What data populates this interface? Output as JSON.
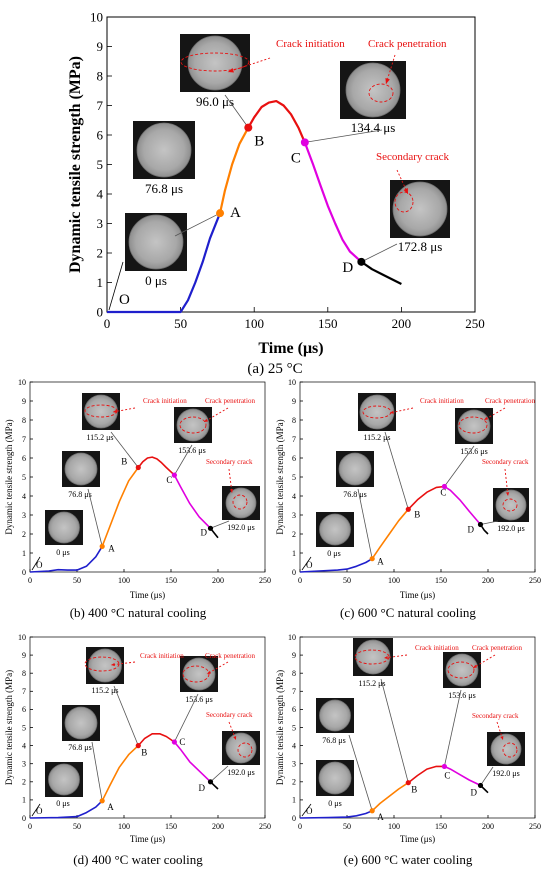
{
  "chart_data": [
    {
      "type": "line",
      "panel": "a",
      "caption": "(a) 25 °C",
      "xlabel": "Time (μs)",
      "ylabel": "Dynamic tensile strength (MPa)",
      "xlim": [
        0,
        250
      ],
      "ylim": [
        0,
        10
      ],
      "xticks": [
        0,
        50,
        100,
        150,
        200,
        250
      ],
      "yticks": [
        0,
        1,
        2,
        3,
        4,
        5,
        6,
        7,
        8,
        9,
        10
      ],
      "grid": false,
      "series": [
        {
          "color": "#1f1fcc",
          "x": [
            0,
            50,
            55,
            60,
            65,
            70,
            76.8
          ],
          "y": [
            0,
            0,
            0.4,
            1.0,
            1.7,
            2.5,
            3.35
          ]
        },
        {
          "color": "#ff8000",
          "x": [
            76.8,
            80,
            85,
            90,
            96.0
          ],
          "y": [
            3.35,
            4.1,
            5.0,
            5.7,
            6.25
          ]
        },
        {
          "color": "#e81010",
          "x": [
            96.0,
            100,
            105,
            110,
            115,
            120,
            125,
            130,
            134.4
          ],
          "y": [
            6.25,
            6.6,
            6.95,
            7.1,
            7.15,
            7.0,
            6.7,
            6.25,
            5.75
          ]
        },
        {
          "color": "#e000e0",
          "x": [
            134.4,
            140,
            145,
            150,
            155,
            160,
            165,
            172.8
          ],
          "y": [
            5.75,
            5.0,
            4.3,
            3.6,
            3.0,
            2.45,
            2.05,
            1.7
          ]
        },
        {
          "color": "#000000",
          "x": [
            172.8,
            180,
            190,
            200
          ],
          "y": [
            1.7,
            1.45,
            1.2,
            0.95
          ]
        }
      ],
      "points": [
        {
          "label": "O",
          "x": 0,
          "y": 0,
          "color": "#1f1fcc"
        },
        {
          "label": "A",
          "x": 76.8,
          "y": 3.35,
          "color": "#ff8000"
        },
        {
          "label": "B",
          "x": 96.0,
          "y": 6.25,
          "color": "#e81010"
        },
        {
          "label": "C",
          "x": 134.4,
          "y": 5.75,
          "color": "#e000e0"
        },
        {
          "label": "D",
          "x": 172.8,
          "y": 1.7,
          "color": "#000000"
        }
      ],
      "snapshots": [
        {
          "time": "0 μs",
          "target": "O"
        },
        {
          "time": "76.8 μs",
          "target": "A"
        },
        {
          "time": "96.0 μs",
          "target": "B"
        },
        {
          "time": "134.4 μs",
          "target": "C"
        },
        {
          "time": "172.8 μs",
          "target": "D"
        }
      ],
      "annotations": [
        "Crack initiation",
        "Crack penetration",
        "Secondary crack"
      ]
    },
    {
      "type": "line",
      "panel": "b",
      "caption": "(b) 400 °C natural cooling",
      "xlabel": "Time (μs)",
      "ylabel": "Dynamic tensile strength (MPa)",
      "xlim": [
        0,
        250
      ],
      "ylim": [
        0,
        10
      ],
      "xticks": [
        0,
        50,
        100,
        150,
        200,
        250
      ],
      "yticks": [
        0,
        1,
        2,
        3,
        4,
        5,
        6,
        7,
        8,
        9,
        10
      ],
      "grid": false,
      "series": [
        {
          "color": "#1f1fcc",
          "x": [
            0,
            20,
            30,
            40,
            50,
            60,
            70,
            76.8
          ],
          "y": [
            0,
            0.05,
            0.12,
            0.1,
            0.1,
            0.3,
            0.8,
            1.35
          ]
        },
        {
          "color": "#ff8000",
          "x": [
            76.8,
            85,
            95,
            105,
            115.2
          ],
          "y": [
            1.35,
            2.4,
            3.7,
            4.8,
            5.5
          ]
        },
        {
          "color": "#e81010",
          "x": [
            115.2,
            120,
            125,
            130,
            135,
            140,
            145,
            153.6
          ],
          "y": [
            5.5,
            5.8,
            6.0,
            6.05,
            5.95,
            5.75,
            5.5,
            5.1
          ]
        },
        {
          "color": "#e000e0",
          "x": [
            153.6,
            160,
            170,
            180,
            192.0
          ],
          "y": [
            5.1,
            4.5,
            3.6,
            2.9,
            2.3
          ]
        },
        {
          "color": "#000000",
          "x": [
            192.0,
            196,
            200
          ],
          "y": [
            2.3,
            2.05,
            1.8
          ]
        }
      ],
      "points": [
        {
          "label": "O",
          "x": 0,
          "y": 0,
          "color": "#1f1fcc"
        },
        {
          "label": "A",
          "x": 76.8,
          "y": 1.35,
          "color": "#ff8000"
        },
        {
          "label": "B",
          "x": 115.2,
          "y": 5.5,
          "color": "#e81010"
        },
        {
          "label": "C",
          "x": 153.6,
          "y": 5.1,
          "color": "#e000e0"
        },
        {
          "label": "D",
          "x": 192.0,
          "y": 2.3,
          "color": "#000000"
        }
      ],
      "snapshots": [
        {
          "time": "0 μs",
          "target": "O"
        },
        {
          "time": "76.8 μs",
          "target": "A"
        },
        {
          "time": "115.2 μs",
          "target": "B"
        },
        {
          "time": "153.6 μs",
          "target": "C"
        },
        {
          "time": "192.0 μs",
          "target": "D"
        }
      ],
      "annotations": [
        "Crack initiation",
        "Crack penetration",
        "Secondary crack"
      ]
    },
    {
      "type": "line",
      "panel": "c",
      "caption": "(c) 600 °C natural cooling",
      "xlabel": "Time (μs)",
      "ylabel": "Dynamic tensile strength (MPa)",
      "xlim": [
        0,
        250
      ],
      "ylim": [
        0,
        10
      ],
      "xticks": [
        0,
        50,
        100,
        150,
        200,
        250
      ],
      "yticks": [
        0,
        1,
        2,
        3,
        4,
        5,
        6,
        7,
        8,
        9,
        10
      ],
      "grid": false,
      "series": [
        {
          "color": "#1f1fcc",
          "x": [
            0,
            20,
            40,
            50,
            60,
            70,
            76.8
          ],
          "y": [
            0,
            0.05,
            0.1,
            0.15,
            0.3,
            0.5,
            0.7
          ]
        },
        {
          "color": "#ff8000",
          "x": [
            76.8,
            85,
            95,
            105,
            115.2
          ],
          "y": [
            0.7,
            1.3,
            2.0,
            2.7,
            3.3
          ]
        },
        {
          "color": "#e81010",
          "x": [
            115.2,
            125,
            135,
            145,
            153.6
          ],
          "y": [
            3.3,
            3.8,
            4.2,
            4.45,
            4.5
          ]
        },
        {
          "color": "#e000e0",
          "x": [
            153.6,
            160,
            170,
            180,
            192.0
          ],
          "y": [
            4.5,
            4.3,
            3.8,
            3.2,
            2.5
          ]
        },
        {
          "color": "#000000",
          "x": [
            192.0,
            196,
            200
          ],
          "y": [
            2.5,
            2.2,
            2.0
          ]
        }
      ],
      "points": [
        {
          "label": "O",
          "x": 0,
          "y": 0,
          "color": "#1f1fcc"
        },
        {
          "label": "A",
          "x": 76.8,
          "y": 0.7,
          "color": "#ff8000"
        },
        {
          "label": "B",
          "x": 115.2,
          "y": 3.3,
          "color": "#e81010"
        },
        {
          "label": "C",
          "x": 153.6,
          "y": 4.5,
          "color": "#e000e0"
        },
        {
          "label": "D",
          "x": 192.0,
          "y": 2.5,
          "color": "#000000"
        }
      ],
      "snapshots": [
        {
          "time": "0 μs",
          "target": "O"
        },
        {
          "time": "76.8 μs",
          "target": "A"
        },
        {
          "time": "115.2 μs",
          "target": "B"
        },
        {
          "time": "153.6 μs",
          "target": "C"
        },
        {
          "time": "192.0 μs",
          "target": "D"
        }
      ],
      "annotations": [
        "Crack initiation",
        "Crack penetration",
        "Secondary crack"
      ]
    },
    {
      "type": "line",
      "panel": "d",
      "caption": "(d) 400 °C water cooling",
      "xlabel": "Time (μs)",
      "ylabel": "Dynamic tensile strength (MPa)",
      "xlim": [
        0,
        250
      ],
      "ylim": [
        0,
        10
      ],
      "xticks": [
        0,
        50,
        100,
        150,
        200,
        250
      ],
      "yticks": [
        0,
        1,
        2,
        3,
        4,
        5,
        6,
        7,
        8,
        9,
        10
      ],
      "grid": false,
      "series": [
        {
          "color": "#1f1fcc",
          "x": [
            0,
            30,
            50,
            60,
            70,
            76.8
          ],
          "y": [
            0,
            0.02,
            0.08,
            0.3,
            0.6,
            0.95
          ]
        },
        {
          "color": "#ff8000",
          "x": [
            76.8,
            85,
            95,
            105,
            115.2
          ],
          "y": [
            0.95,
            1.8,
            2.8,
            3.5,
            4.0
          ]
        },
        {
          "color": "#e81010",
          "x": [
            115.2,
            122,
            130,
            138,
            145,
            153.6
          ],
          "y": [
            4.0,
            4.4,
            4.65,
            4.65,
            4.5,
            4.2
          ]
        },
        {
          "color": "#e000e0",
          "x": [
            153.6,
            160,
            170,
            180,
            192.0
          ],
          "y": [
            4.2,
            3.8,
            3.1,
            2.6,
            2.0
          ]
        },
        {
          "color": "#000000",
          "x": [
            192.0,
            196,
            200
          ],
          "y": [
            2.0,
            1.8,
            1.6
          ]
        }
      ],
      "points": [
        {
          "label": "O",
          "x": 0,
          "y": 0,
          "color": "#1f1fcc"
        },
        {
          "label": "A",
          "x": 76.8,
          "y": 0.95,
          "color": "#ff8000"
        },
        {
          "label": "B",
          "x": 115.2,
          "y": 4.0,
          "color": "#e81010"
        },
        {
          "label": "C",
          "x": 153.6,
          "y": 4.2,
          "color": "#e000e0"
        },
        {
          "label": "D",
          "x": 192.0,
          "y": 2.0,
          "color": "#000000"
        }
      ],
      "snapshots": [
        {
          "time": "0 μs",
          "target": "O"
        },
        {
          "time": "76.8 μs",
          "target": "A"
        },
        {
          "time": "115.2 μs",
          "target": "B"
        },
        {
          "time": "153.6 μs",
          "target": "C"
        },
        {
          "time": "192.0 μs",
          "target": "D"
        }
      ],
      "annotations": [
        "Crack initiation",
        "Crack penetration",
        "Secondary crack"
      ]
    },
    {
      "type": "line",
      "panel": "e",
      "caption": "(e) 600 °C water cooling",
      "xlabel": "Time (μs)",
      "ylabel": "Dynamic tensile strength (MPa)",
      "xlim": [
        0,
        250
      ],
      "ylim": [
        0,
        10
      ],
      "xticks": [
        0,
        50,
        100,
        150,
        200,
        250
      ],
      "yticks": [
        0,
        1,
        2,
        3,
        4,
        5,
        6,
        7,
        8,
        9,
        10
      ],
      "grid": false,
      "series": [
        {
          "color": "#1f1fcc",
          "x": [
            0,
            30,
            50,
            60,
            70,
            76.8
          ],
          "y": [
            0,
            0.02,
            0.05,
            0.12,
            0.25,
            0.4
          ]
        },
        {
          "color": "#ff8000",
          "x": [
            76.8,
            85,
            95,
            105,
            115.2
          ],
          "y": [
            0.4,
            0.8,
            1.2,
            1.6,
            1.95
          ]
        },
        {
          "color": "#e81010",
          "x": [
            115.2,
            125,
            135,
            145,
            153.6
          ],
          "y": [
            1.95,
            2.35,
            2.7,
            2.85,
            2.85
          ]
        },
        {
          "color": "#e000e0",
          "x": [
            153.6,
            160,
            170,
            180,
            192.0
          ],
          "y": [
            2.85,
            2.7,
            2.4,
            2.1,
            1.8
          ]
        },
        {
          "color": "#000000",
          "x": [
            192.0,
            196,
            200
          ],
          "y": [
            1.8,
            1.6,
            1.4
          ]
        }
      ],
      "points": [
        {
          "label": "O",
          "x": 0,
          "y": 0,
          "color": "#1f1fcc"
        },
        {
          "label": "A",
          "x": 76.8,
          "y": 0.4,
          "color": "#ff8000"
        },
        {
          "label": "B",
          "x": 115.2,
          "y": 1.95,
          "color": "#e81010"
        },
        {
          "label": "C",
          "x": 153.6,
          "y": 2.85,
          "color": "#e000e0"
        },
        {
          "label": "D",
          "x": 192.0,
          "y": 1.8,
          "color": "#000000"
        }
      ],
      "snapshots": [
        {
          "time": "0 μs",
          "target": "O"
        },
        {
          "time": "76.8 μs",
          "target": "A"
        },
        {
          "time": "115.2 μs",
          "target": "B"
        },
        {
          "time": "153.6 μs",
          "target": "C"
        },
        {
          "time": "192.0 μs",
          "target": "D"
        }
      ],
      "annotations": [
        "Crack initiation",
        "Crack penetration",
        "Secondary crack"
      ]
    }
  ]
}
